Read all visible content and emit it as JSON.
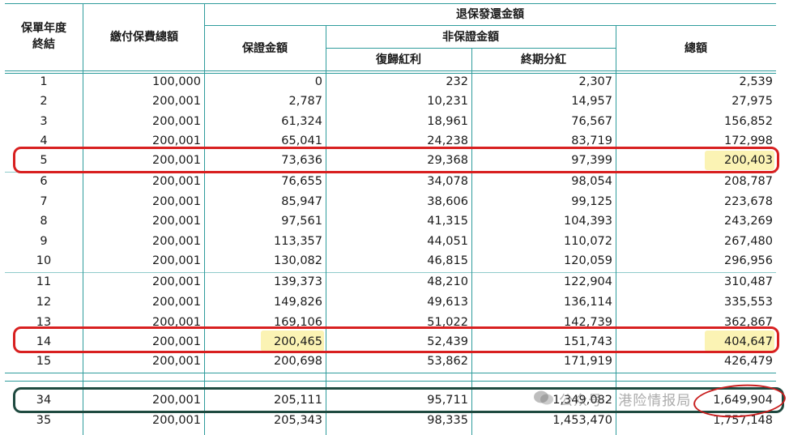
{
  "headers": {
    "policy_year_end": "保單年度\n終結",
    "total_premium": "繳付保費總額",
    "surrender_value": "退保發還金額",
    "guaranteed": "保證金額",
    "non_guaranteed": "非保證金額",
    "reversionary_bonus": "復歸紅利",
    "terminal_bonus": "終期分紅",
    "total": "總額"
  },
  "rows": [
    {
      "year": "1",
      "premium": "100,000",
      "guaranteed": "0",
      "reversionary": "232",
      "terminal": "2,307",
      "total": "2,539"
    },
    {
      "year": "2",
      "premium": "200,001",
      "guaranteed": "2,787",
      "reversionary": "10,231",
      "terminal": "14,957",
      "total": "27,975"
    },
    {
      "year": "3",
      "premium": "200,001",
      "guaranteed": "61,324",
      "reversionary": "18,961",
      "terminal": "76,567",
      "total": "156,852"
    },
    {
      "year": "4",
      "premium": "200,001",
      "guaranteed": "65,041",
      "reversionary": "24,238",
      "terminal": "83,719",
      "total": "172,998"
    },
    {
      "year": "5",
      "premium": "200,001",
      "guaranteed": "73,636",
      "reversionary": "29,368",
      "terminal": "97,399",
      "total": "200,403"
    },
    {
      "year": "6",
      "premium": "200,001",
      "guaranteed": "76,655",
      "reversionary": "34,078",
      "terminal": "98,054",
      "total": "208,787"
    },
    {
      "year": "7",
      "premium": "200,001",
      "guaranteed": "85,947",
      "reversionary": "38,606",
      "terminal": "99,125",
      "total": "223,678"
    },
    {
      "year": "8",
      "premium": "200,001",
      "guaranteed": "97,561",
      "reversionary": "41,315",
      "terminal": "104,393",
      "total": "243,269"
    },
    {
      "year": "9",
      "premium": "200,001",
      "guaranteed": "113,357",
      "reversionary": "44,051",
      "terminal": "110,072",
      "total": "267,480"
    },
    {
      "year": "10",
      "premium": "200,001",
      "guaranteed": "130,082",
      "reversionary": "46,815",
      "terminal": "120,059",
      "total": "296,956"
    },
    {
      "year": "11",
      "premium": "200,001",
      "guaranteed": "139,373",
      "reversionary": "48,210",
      "terminal": "122,904",
      "total": "310,487"
    },
    {
      "year": "12",
      "premium": "200,001",
      "guaranteed": "149,826",
      "reversionary": "49,613",
      "terminal": "136,114",
      "total": "335,553"
    },
    {
      "year": "13",
      "premium": "200,001",
      "guaranteed": "169,106",
      "reversionary": "51,022",
      "terminal": "142,739",
      "total": "362,867"
    },
    {
      "year": "14",
      "premium": "200,001",
      "guaranteed": "200,465",
      "reversionary": "52,439",
      "terminal": "151,743",
      "total": "404,647"
    },
    {
      "year": "15",
      "premium": "200,001",
      "guaranteed": "200,698",
      "reversionary": "53,862",
      "terminal": "171,919",
      "total": "426,479"
    },
    {
      "year": "34",
      "premium": "200,001",
      "guaranteed": "205,111",
      "reversionary": "95,711",
      "terminal": "1,349,082",
      "total": "1,649,904"
    },
    {
      "year": "35",
      "premium": "200,001",
      "guaranteed": "205,343",
      "reversionary": "98,335",
      "terminal": "1,453,470",
      "total": "1,757,148"
    }
  ],
  "watermark": "公众号 · 港险情报局",
  "colors": {
    "grid": "#2f9c9c",
    "highlight": "#fbf3b4",
    "red_box": "#d82020",
    "green_box": "#1f4a40"
  }
}
